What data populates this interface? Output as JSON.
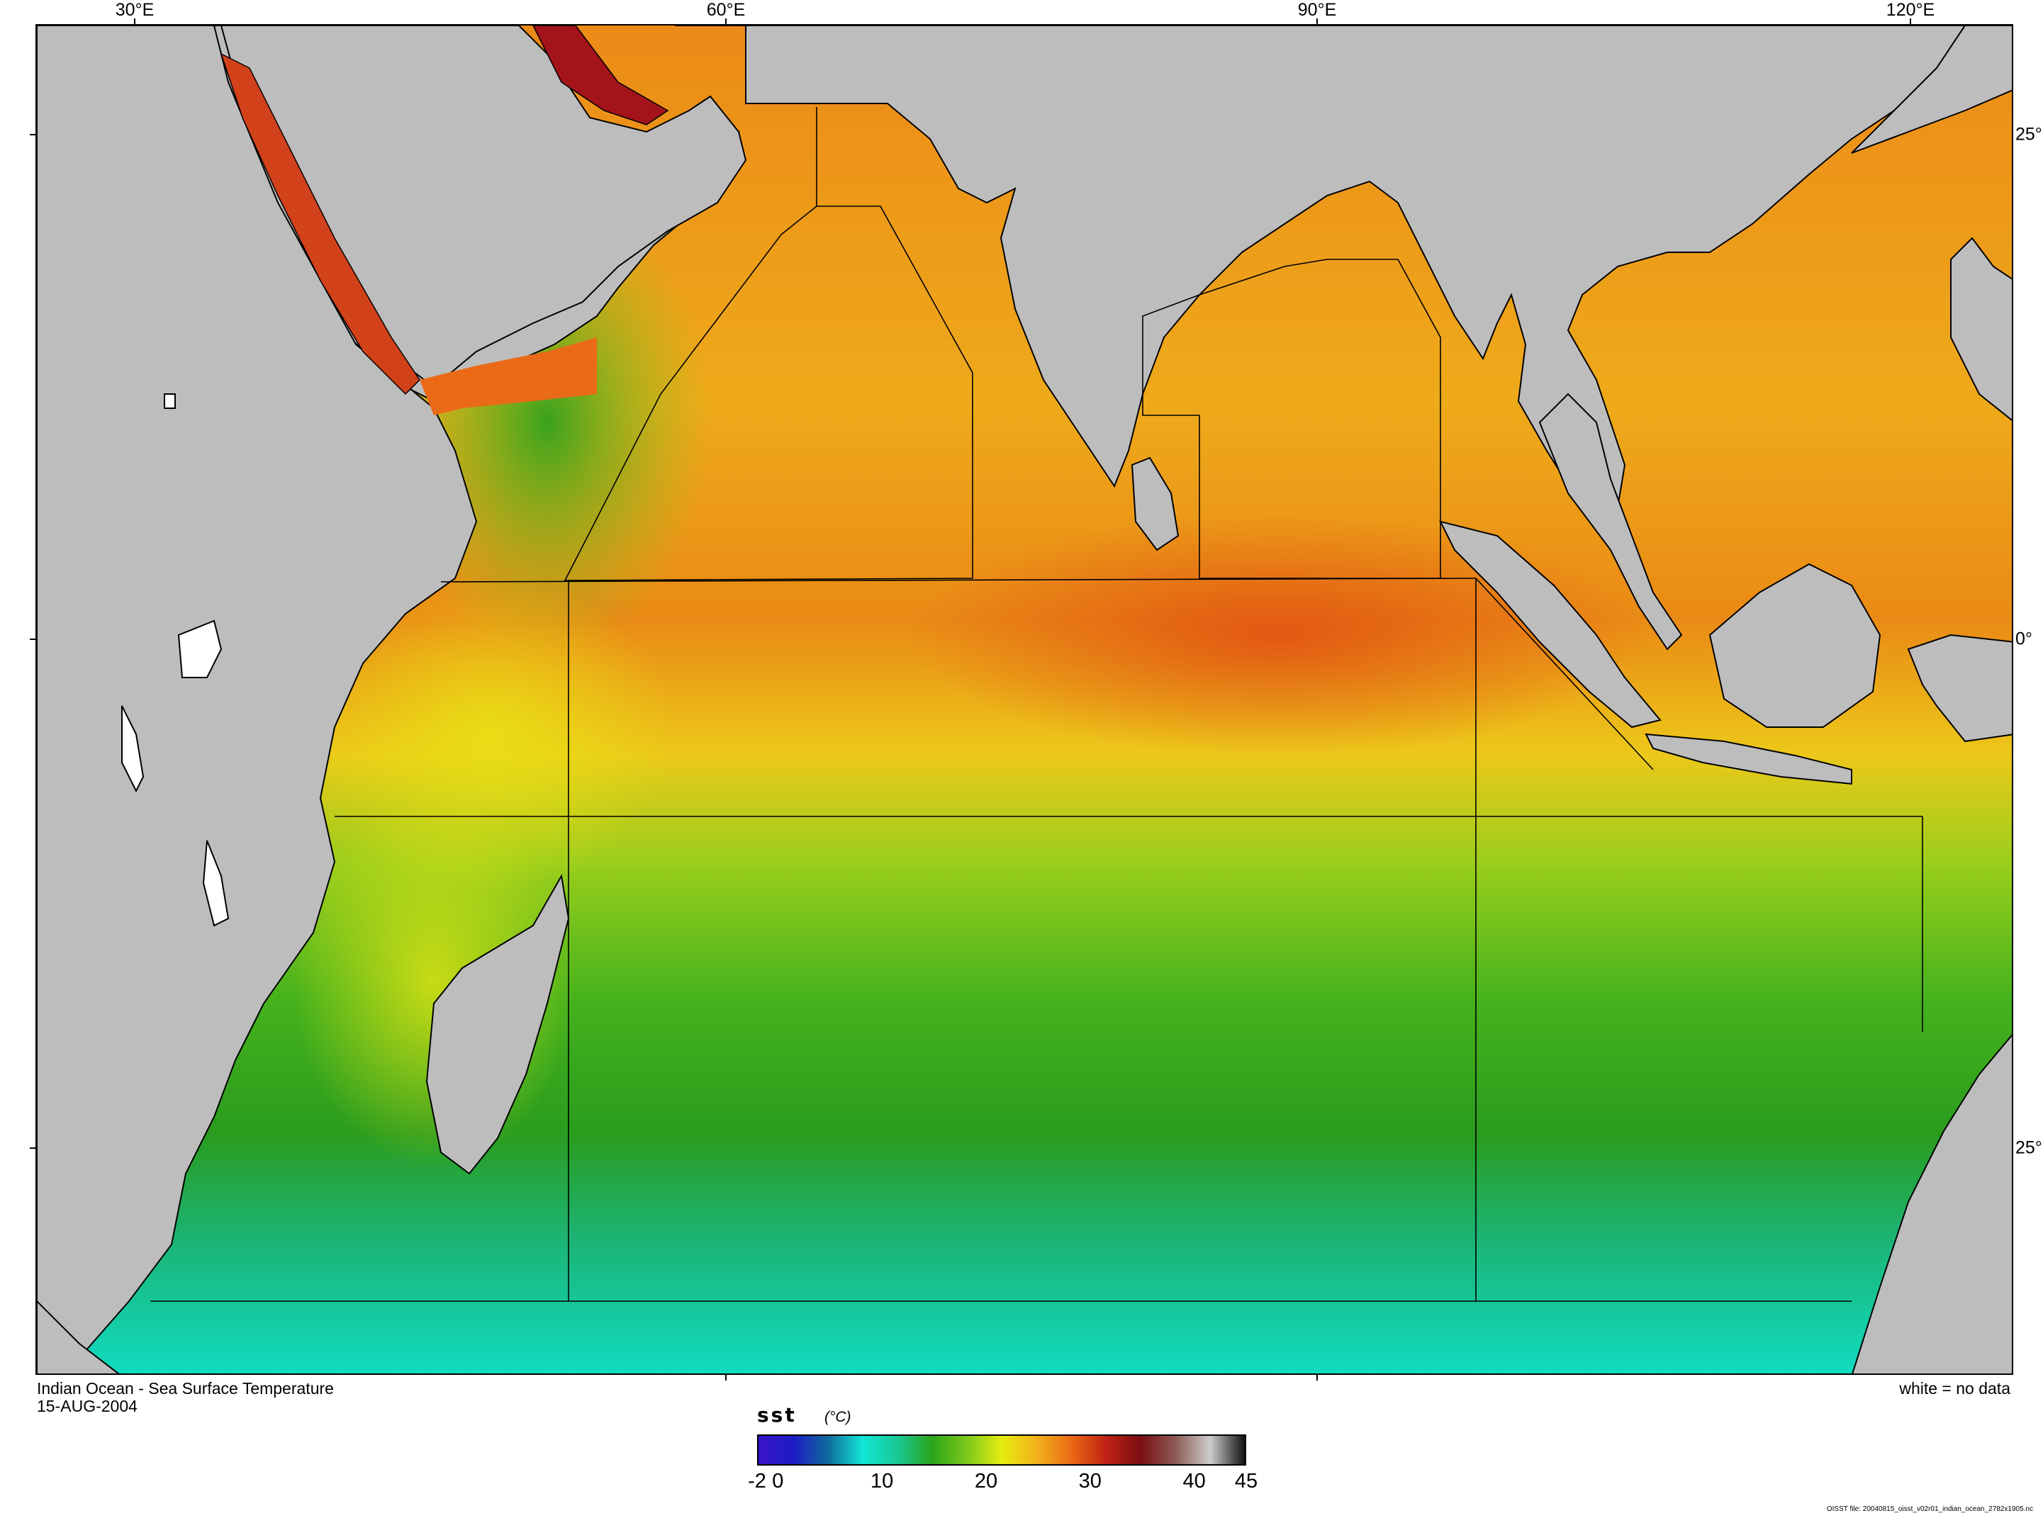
{
  "map": {
    "lon_labels": [
      "30°E",
      "60°E",
      "90°E",
      "120°E"
    ],
    "lat_labels": [
      "25°",
      "0°",
      "25°"
    ],
    "background_colors": {
      "land": "#bdbdbd",
      "no_data": "#ffffff",
      "box_lines": "#000000"
    }
  },
  "caption": {
    "title": "Indian Ocean - Sea Surface Temperature",
    "date": "15-AUG-2004",
    "no_data_note": "white = no data"
  },
  "colorbar": {
    "variable": "sst",
    "units": "(°C)",
    "tick_labels": [
      "-2",
      "0",
      "10",
      "20",
      "30",
      "40",
      "45"
    ],
    "range": [
      -2,
      45
    ],
    "colors": [
      "#3a14c8",
      "#1c1cc4",
      "#106a9c",
      "#12e6d6",
      "#18c896",
      "#2ca41a",
      "#7ac81c",
      "#e6ec10",
      "#f2b21c",
      "#ea6a14",
      "#c02214",
      "#7a0e14",
      "#8c5a54",
      "#cccccc",
      "#111111"
    ]
  },
  "footer": {
    "file_info": "OISST file: 20040815_oisst_v02r01_indian_ocean_2782x1905.nc"
  }
}
